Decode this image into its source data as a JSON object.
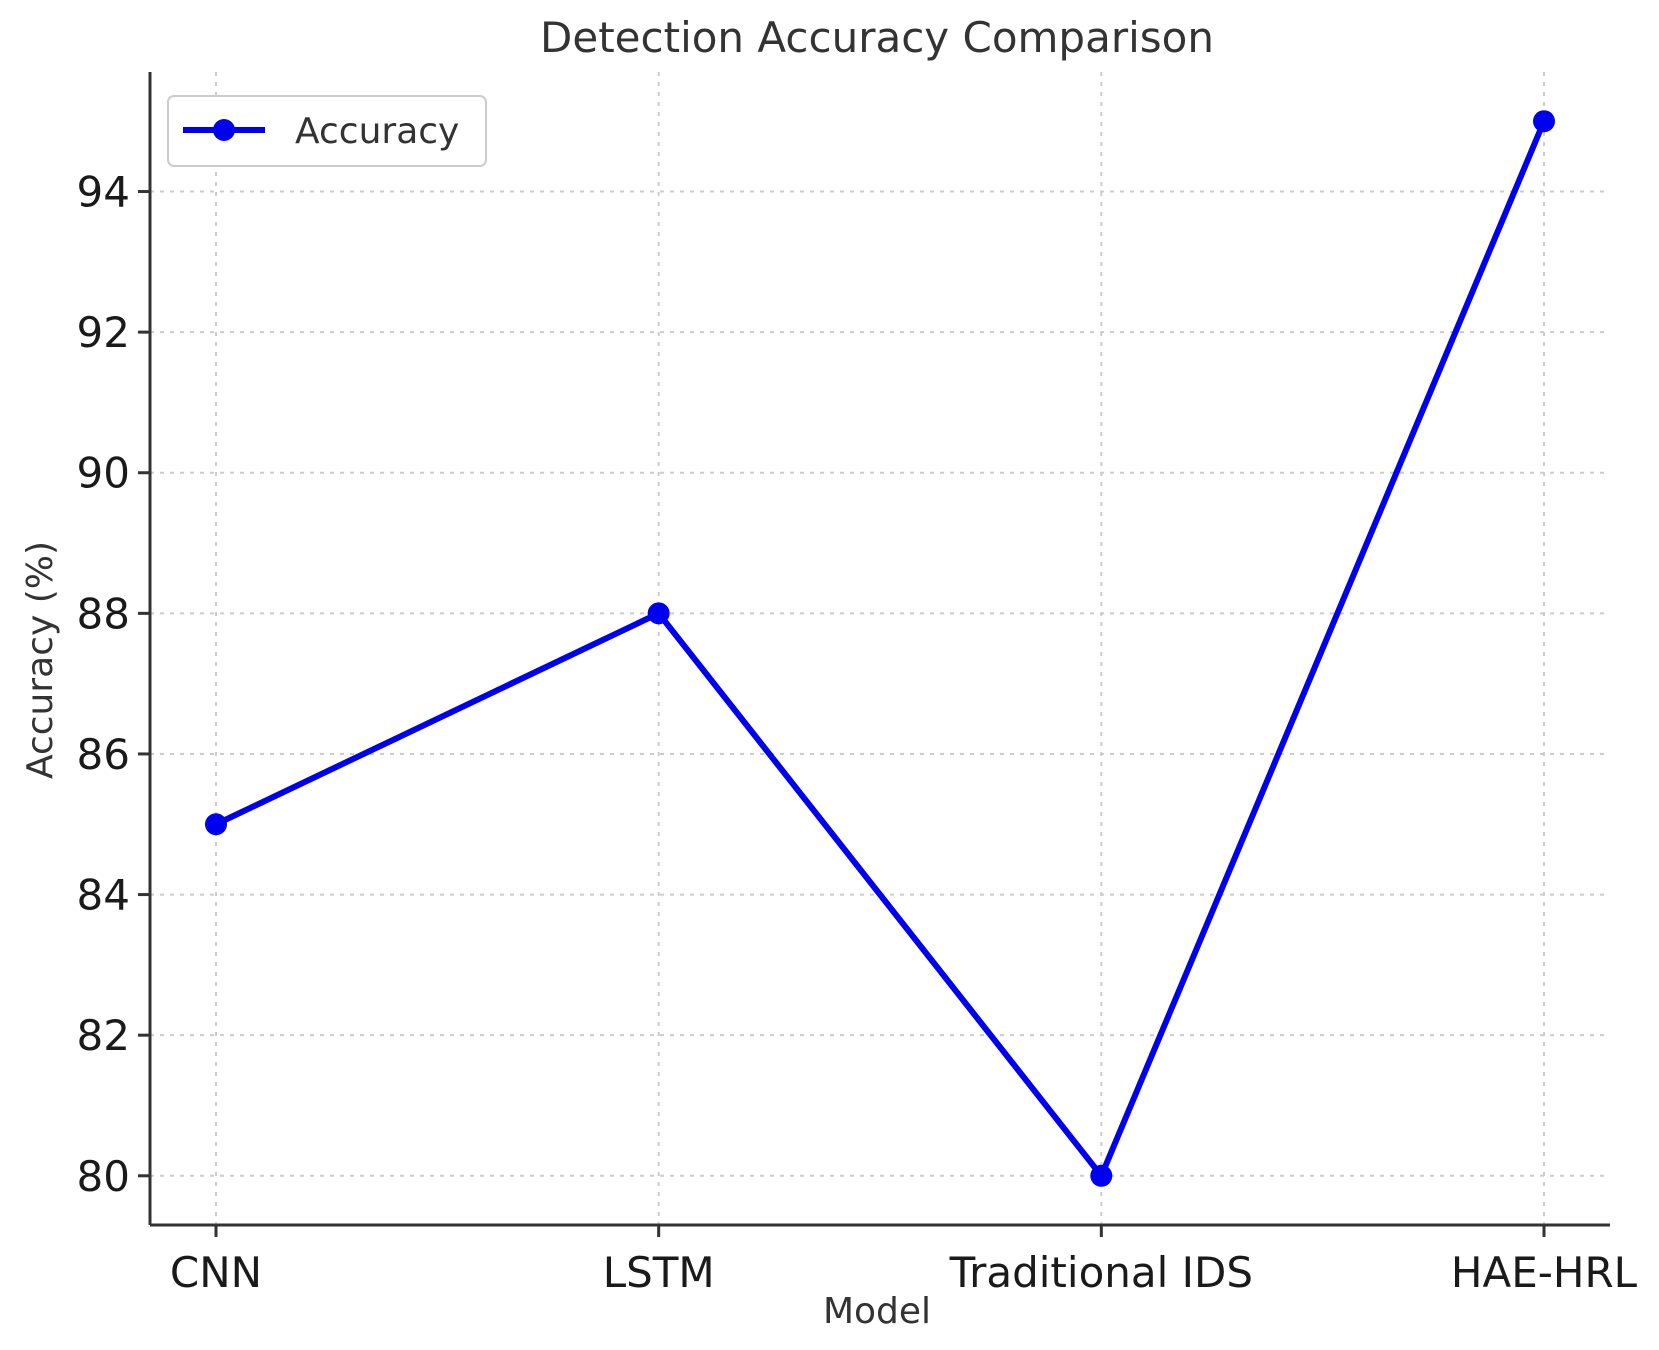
{
  "chart_data": {
    "type": "line",
    "title": "Detection Accuracy Comparison",
    "xlabel": "Model",
    "ylabel": "Accuracy (%)",
    "categories": [
      "CNN",
      "LSTM",
      "Traditional IDS",
      "HAE-HRL"
    ],
    "series": [
      {
        "name": "Accuracy",
        "values": [
          85,
          88,
          80,
          95
        ],
        "color": "#0000ee",
        "marker": "circle"
      }
    ],
    "yticks": [
      80,
      82,
      84,
      86,
      88,
      90,
      92,
      94
    ],
    "ylim": [
      79.3,
      95.7
    ],
    "grid": true,
    "legend": "top-left"
  }
}
